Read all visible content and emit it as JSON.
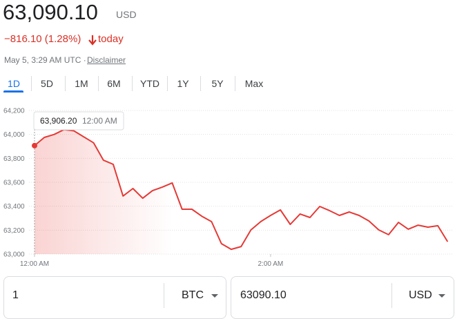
{
  "header": {
    "price": "63,090.10",
    "currency": "USD",
    "change": "−816.10 (1.28%)",
    "change_period": "today",
    "timestamp": "May 5, 3:29 AM UTC · ",
    "disclaimer": "Disclaimer"
  },
  "tabs": [
    "1D",
    "5D",
    "1M",
    "6M",
    "YTD",
    "1Y",
    "5Y",
    "Max"
  ],
  "chart_data": {
    "type": "line",
    "color": "#e53935",
    "x": [
      0,
      5,
      10,
      15,
      20,
      25,
      30,
      35,
      40,
      45,
      50,
      55,
      60,
      65,
      70,
      75,
      80,
      85,
      90,
      95,
      100,
      105,
      110,
      115,
      120,
      125,
      130,
      135,
      140,
      145,
      150,
      155,
      160,
      165,
      170,
      175,
      180,
      185,
      190,
      195,
      200,
      205,
      210
    ],
    "values": [
      63906.2,
      63975,
      64000,
      64040,
      64030,
      63980,
      63930,
      63785,
      63750,
      63485,
      63548,
      63467,
      63530,
      63560,
      63595,
      63375,
      63375,
      63317,
      63271,
      63087,
      63040,
      63063,
      63202,
      63271,
      63323,
      63369,
      63248,
      63335,
      63306,
      63398,
      63363,
      63323,
      63352,
      63323,
      63277,
      63202,
      63162,
      63265,
      63208,
      63242,
      63225,
      63237,
      63104
    ],
    "xlim": [
      0,
      212
    ],
    "ylim": [
      63000,
      64200
    ],
    "xticks": [
      {
        "value": 0,
        "label": "12:00 AM"
      },
      {
        "value": 120,
        "label": "2:00 AM"
      }
    ],
    "yticks": [
      {
        "value": 63000,
        "label": "63,000"
      },
      {
        "value": 63200,
        "label": "63,200"
      },
      {
        "value": 63400,
        "label": "63,400"
      },
      {
        "value": 63600,
        "label": "63,600"
      },
      {
        "value": 63800,
        "label": "63,800"
      },
      {
        "value": 64000,
        "label": "64,000"
      },
      {
        "value": 64200,
        "label": "64,200"
      }
    ],
    "grid": true,
    "tooltip": {
      "price": "63,906.20",
      "time": "12:00 AM"
    }
  },
  "converter": {
    "from_amount": "1",
    "from_currency": "BTC",
    "to_amount": "63090.10",
    "to_currency": "USD"
  }
}
